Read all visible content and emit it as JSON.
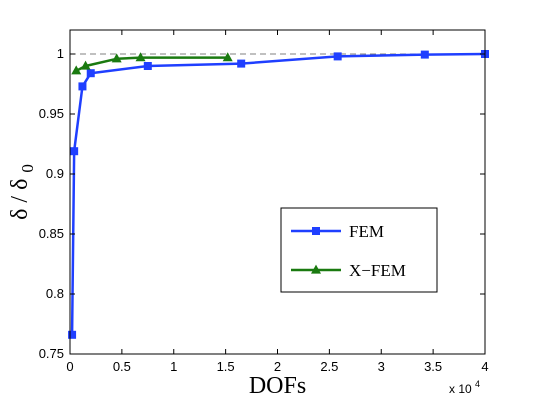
{
  "chart_data": {
    "type": "line",
    "xlabel": "DOFs",
    "ylabel_main": "δ / δ",
    "ylabel_sub": "0",
    "x_multiplier_base": "x 10",
    "x_multiplier_exp": "4",
    "xlim": [
      0,
      4
    ],
    "ylim": [
      0.75,
      1.02
    ],
    "x_ticks": [
      0,
      0.5,
      1,
      1.5,
      2,
      2.5,
      3,
      3.5,
      4
    ],
    "x_tick_labels": [
      "0",
      "0.5",
      "1",
      "1.5",
      "2",
      "2.5",
      "3",
      "3.5",
      "4"
    ],
    "y_ticks": [
      0.75,
      0.8,
      0.85,
      0.9,
      0.95,
      1
    ],
    "y_tick_labels": [
      "0.75",
      "0.8",
      "0.85",
      "0.9",
      "0.95",
      "1"
    ],
    "reference_line": {
      "y": 1,
      "style": "dashed",
      "color": "#808080"
    },
    "grid": false,
    "legend_position": "lower-right",
    "series": [
      {
        "name": "FEM",
        "color": "#1f3fff",
        "marker": "square",
        "x": [
          0.02,
          0.04,
          0.12,
          0.2,
          0.75,
          1.65,
          2.58,
          3.42,
          4.0
        ],
        "y": [
          0.766,
          0.919,
          0.973,
          0.984,
          0.99,
          0.992,
          0.998,
          0.9995,
          1.0
        ]
      },
      {
        "name": "X−FEM",
        "color": "#1a7a10",
        "marker": "triangle",
        "x": [
          0.06,
          0.15,
          0.45,
          0.68,
          1.52
        ],
        "y": [
          0.986,
          0.99,
          0.996,
          0.997,
          0.997
        ]
      }
    ]
  }
}
